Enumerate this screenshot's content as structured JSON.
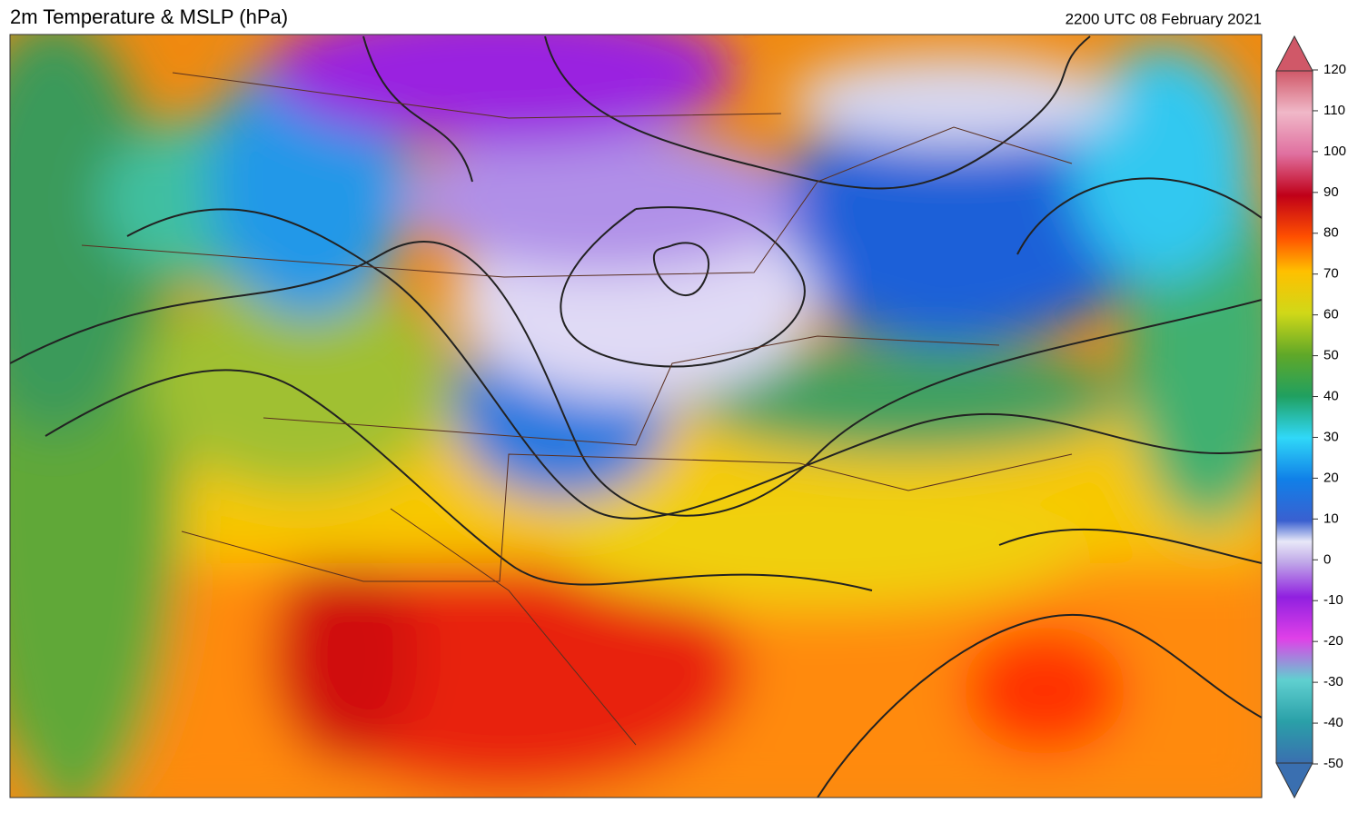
{
  "header": {
    "title": "2m Temperature & MSLP (hPa)",
    "timestamp": "2200 UTC 08 February 2021"
  },
  "colorbar": {
    "ticks": [
      -50,
      -40,
      -30,
      -20,
      -10,
      0,
      10,
      20,
      30,
      40,
      50,
      60,
      70,
      80,
      90,
      100,
      110,
      120
    ]
  }
}
